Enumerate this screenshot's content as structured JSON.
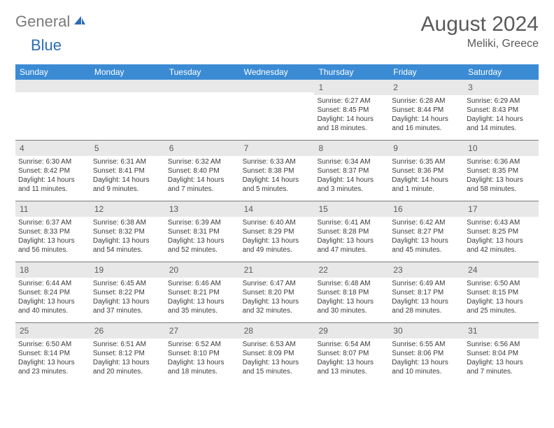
{
  "logo": {
    "general": "General",
    "blue": "Blue"
  },
  "title": "August 2024",
  "location": "Meliki, Greece",
  "colors": {
    "header_bg": "#3b8bd4",
    "header_text": "#ffffff",
    "daynum_bg": "#e8e8e8",
    "text": "#3a3a3a",
    "title_text": "#5a5a5a",
    "logo_gray": "#7a7a7a",
    "logo_blue": "#2a6db8",
    "rule": "#7a7a7a"
  },
  "weekdays": [
    "Sunday",
    "Monday",
    "Tuesday",
    "Wednesday",
    "Thursday",
    "Friday",
    "Saturday"
  ],
  "weeks": [
    [
      null,
      null,
      null,
      null,
      {
        "n": "1",
        "sr": "Sunrise: 6:27 AM",
        "ss": "Sunset: 8:45 PM",
        "d1": "Daylight: 14 hours",
        "d2": "and 18 minutes."
      },
      {
        "n": "2",
        "sr": "Sunrise: 6:28 AM",
        "ss": "Sunset: 8:44 PM",
        "d1": "Daylight: 14 hours",
        "d2": "and 16 minutes."
      },
      {
        "n": "3",
        "sr": "Sunrise: 6:29 AM",
        "ss": "Sunset: 8:43 PM",
        "d1": "Daylight: 14 hours",
        "d2": "and 14 minutes."
      }
    ],
    [
      {
        "n": "4",
        "sr": "Sunrise: 6:30 AM",
        "ss": "Sunset: 8:42 PM",
        "d1": "Daylight: 14 hours",
        "d2": "and 11 minutes."
      },
      {
        "n": "5",
        "sr": "Sunrise: 6:31 AM",
        "ss": "Sunset: 8:41 PM",
        "d1": "Daylight: 14 hours",
        "d2": "and 9 minutes."
      },
      {
        "n": "6",
        "sr": "Sunrise: 6:32 AM",
        "ss": "Sunset: 8:40 PM",
        "d1": "Daylight: 14 hours",
        "d2": "and 7 minutes."
      },
      {
        "n": "7",
        "sr": "Sunrise: 6:33 AM",
        "ss": "Sunset: 8:38 PM",
        "d1": "Daylight: 14 hours",
        "d2": "and 5 minutes."
      },
      {
        "n": "8",
        "sr": "Sunrise: 6:34 AM",
        "ss": "Sunset: 8:37 PM",
        "d1": "Daylight: 14 hours",
        "d2": "and 3 minutes."
      },
      {
        "n": "9",
        "sr": "Sunrise: 6:35 AM",
        "ss": "Sunset: 8:36 PM",
        "d1": "Daylight: 14 hours",
        "d2": "and 1 minute."
      },
      {
        "n": "10",
        "sr": "Sunrise: 6:36 AM",
        "ss": "Sunset: 8:35 PM",
        "d1": "Daylight: 13 hours",
        "d2": "and 58 minutes."
      }
    ],
    [
      {
        "n": "11",
        "sr": "Sunrise: 6:37 AM",
        "ss": "Sunset: 8:33 PM",
        "d1": "Daylight: 13 hours",
        "d2": "and 56 minutes."
      },
      {
        "n": "12",
        "sr": "Sunrise: 6:38 AM",
        "ss": "Sunset: 8:32 PM",
        "d1": "Daylight: 13 hours",
        "d2": "and 54 minutes."
      },
      {
        "n": "13",
        "sr": "Sunrise: 6:39 AM",
        "ss": "Sunset: 8:31 PM",
        "d1": "Daylight: 13 hours",
        "d2": "and 52 minutes."
      },
      {
        "n": "14",
        "sr": "Sunrise: 6:40 AM",
        "ss": "Sunset: 8:29 PM",
        "d1": "Daylight: 13 hours",
        "d2": "and 49 minutes."
      },
      {
        "n": "15",
        "sr": "Sunrise: 6:41 AM",
        "ss": "Sunset: 8:28 PM",
        "d1": "Daylight: 13 hours",
        "d2": "and 47 minutes."
      },
      {
        "n": "16",
        "sr": "Sunrise: 6:42 AM",
        "ss": "Sunset: 8:27 PM",
        "d1": "Daylight: 13 hours",
        "d2": "and 45 minutes."
      },
      {
        "n": "17",
        "sr": "Sunrise: 6:43 AM",
        "ss": "Sunset: 8:25 PM",
        "d1": "Daylight: 13 hours",
        "d2": "and 42 minutes."
      }
    ],
    [
      {
        "n": "18",
        "sr": "Sunrise: 6:44 AM",
        "ss": "Sunset: 8:24 PM",
        "d1": "Daylight: 13 hours",
        "d2": "and 40 minutes."
      },
      {
        "n": "19",
        "sr": "Sunrise: 6:45 AM",
        "ss": "Sunset: 8:22 PM",
        "d1": "Daylight: 13 hours",
        "d2": "and 37 minutes."
      },
      {
        "n": "20",
        "sr": "Sunrise: 6:46 AM",
        "ss": "Sunset: 8:21 PM",
        "d1": "Daylight: 13 hours",
        "d2": "and 35 minutes."
      },
      {
        "n": "21",
        "sr": "Sunrise: 6:47 AM",
        "ss": "Sunset: 8:20 PM",
        "d1": "Daylight: 13 hours",
        "d2": "and 32 minutes."
      },
      {
        "n": "22",
        "sr": "Sunrise: 6:48 AM",
        "ss": "Sunset: 8:18 PM",
        "d1": "Daylight: 13 hours",
        "d2": "and 30 minutes."
      },
      {
        "n": "23",
        "sr": "Sunrise: 6:49 AM",
        "ss": "Sunset: 8:17 PM",
        "d1": "Daylight: 13 hours",
        "d2": "and 28 minutes."
      },
      {
        "n": "24",
        "sr": "Sunrise: 6:50 AM",
        "ss": "Sunset: 8:15 PM",
        "d1": "Daylight: 13 hours",
        "d2": "and 25 minutes."
      }
    ],
    [
      {
        "n": "25",
        "sr": "Sunrise: 6:50 AM",
        "ss": "Sunset: 8:14 PM",
        "d1": "Daylight: 13 hours",
        "d2": "and 23 minutes."
      },
      {
        "n": "26",
        "sr": "Sunrise: 6:51 AM",
        "ss": "Sunset: 8:12 PM",
        "d1": "Daylight: 13 hours",
        "d2": "and 20 minutes."
      },
      {
        "n": "27",
        "sr": "Sunrise: 6:52 AM",
        "ss": "Sunset: 8:10 PM",
        "d1": "Daylight: 13 hours",
        "d2": "and 18 minutes."
      },
      {
        "n": "28",
        "sr": "Sunrise: 6:53 AM",
        "ss": "Sunset: 8:09 PM",
        "d1": "Daylight: 13 hours",
        "d2": "and 15 minutes."
      },
      {
        "n": "29",
        "sr": "Sunrise: 6:54 AM",
        "ss": "Sunset: 8:07 PM",
        "d1": "Daylight: 13 hours",
        "d2": "and 13 minutes."
      },
      {
        "n": "30",
        "sr": "Sunrise: 6:55 AM",
        "ss": "Sunset: 8:06 PM",
        "d1": "Daylight: 13 hours",
        "d2": "and 10 minutes."
      },
      {
        "n": "31",
        "sr": "Sunrise: 6:56 AM",
        "ss": "Sunset: 8:04 PM",
        "d1": "Daylight: 13 hours",
        "d2": "and 7 minutes."
      }
    ]
  ]
}
